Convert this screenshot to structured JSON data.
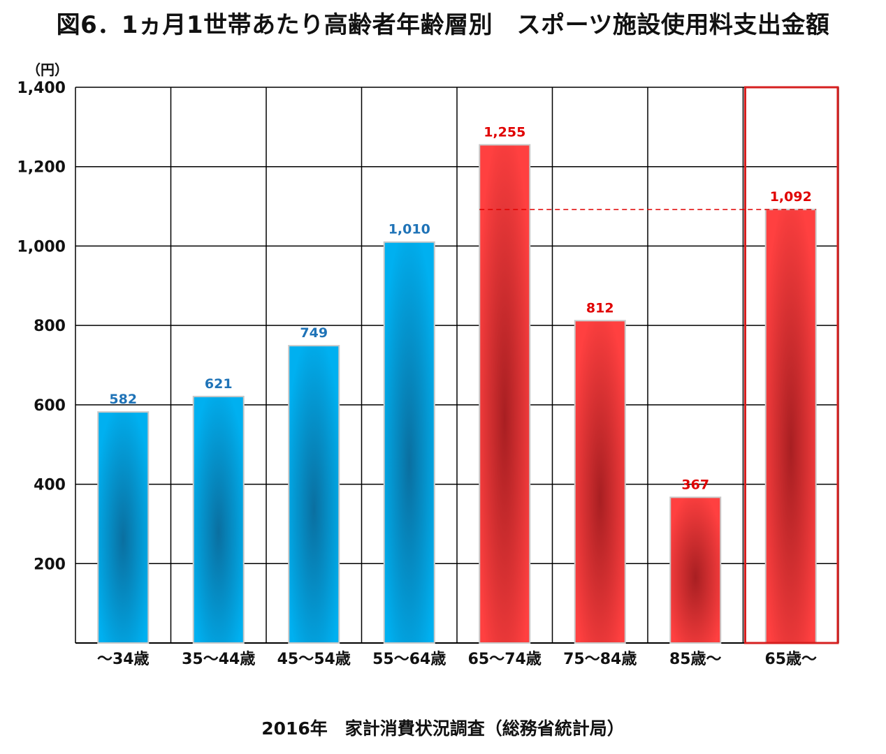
{
  "title": "図6．1ヵ月1世帯あたり高齢者年齢層別　スポーツ施設使用料支出金額",
  "source": "2016年　家計消費状況調査（総務省統計局）",
  "colors": {
    "young_bar": "#00b0f0",
    "young_bar_dark": "#0a6fa0",
    "senior_bar": "#ff4040",
    "senior_bar_dark": "#a81f22",
    "young_label": "#1f73b7",
    "senior_label": "#e00000",
    "highlight_frame": "#d61f1f",
    "grid": "#000000"
  },
  "chart_data": {
    "type": "bar",
    "title": "図6．1ヵ月1世帯あたり高齢者年齢層別　スポーツ施設使用料支出金額",
    "ylabel": "（円）",
    "xlabel": "",
    "ylim": [
      0,
      1400
    ],
    "yticks": [
      200,
      400,
      600,
      800,
      1000,
      1200,
      1400
    ],
    "ytick_labels": [
      "200",
      "400",
      "600",
      "800",
      "1,000",
      "1,200",
      "1,400"
    ],
    "grid": true,
    "categories": [
      "～34歳",
      "35～44歳",
      "45～54歳",
      "55～64歳",
      "65～74歳",
      "75～84歳",
      "85歳～",
      "65歳～"
    ],
    "values": [
      582,
      621,
      749,
      1010,
      1255,
      812,
      367,
      1092
    ],
    "value_labels": [
      "582",
      "621",
      "749",
      "1,010",
      "1,255",
      "812",
      "367",
      "1,092"
    ],
    "bar_group": [
      "young",
      "young",
      "young",
      "young",
      "senior",
      "senior",
      "senior",
      "senior"
    ],
    "highlighted_category": "65歳～",
    "reference_line": {
      "value": 1092,
      "style": "dashed",
      "color": "#e00000"
    }
  }
}
